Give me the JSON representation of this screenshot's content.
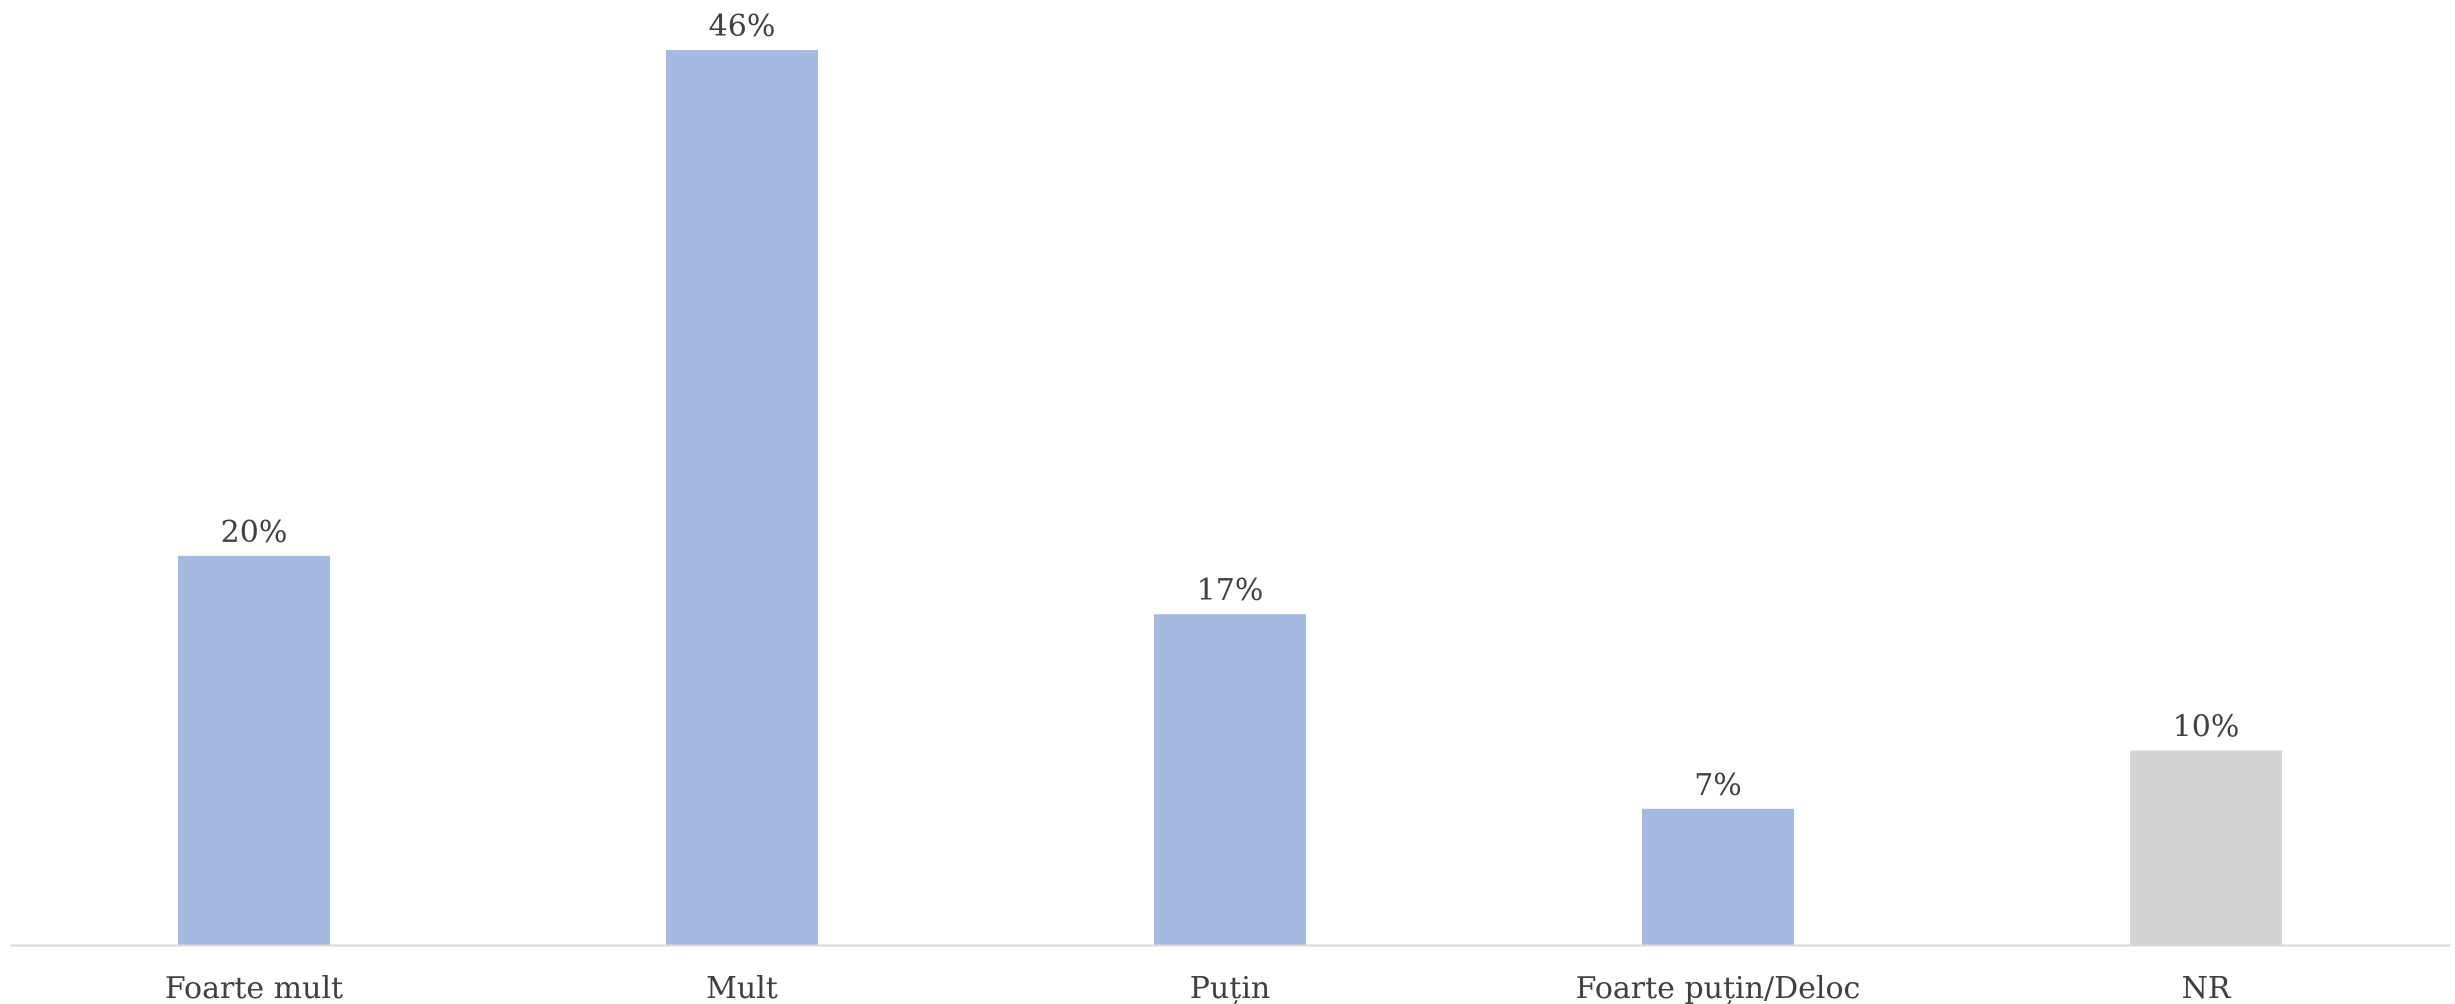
{
  "chart_data": {
    "type": "bar",
    "categories": [
      "Foarte mult",
      "Mult",
      "Puțin",
      "Foarte puțin/Deloc",
      "NR"
    ],
    "values": [
      20,
      46,
      17,
      7,
      10
    ],
    "data_labels": [
      "20%",
      "46%",
      "17%",
      "7%",
      "10%"
    ],
    "unit": "%",
    "ylim": [
      0,
      46
    ],
    "grid": false,
    "legend": "none",
    "colors": [
      "#a3b9e0",
      "#a3b9e0",
      "#a3b9e0",
      "#a3b9e0",
      "#d3d3d3"
    ],
    "axis_color": "#d9d9d9"
  }
}
